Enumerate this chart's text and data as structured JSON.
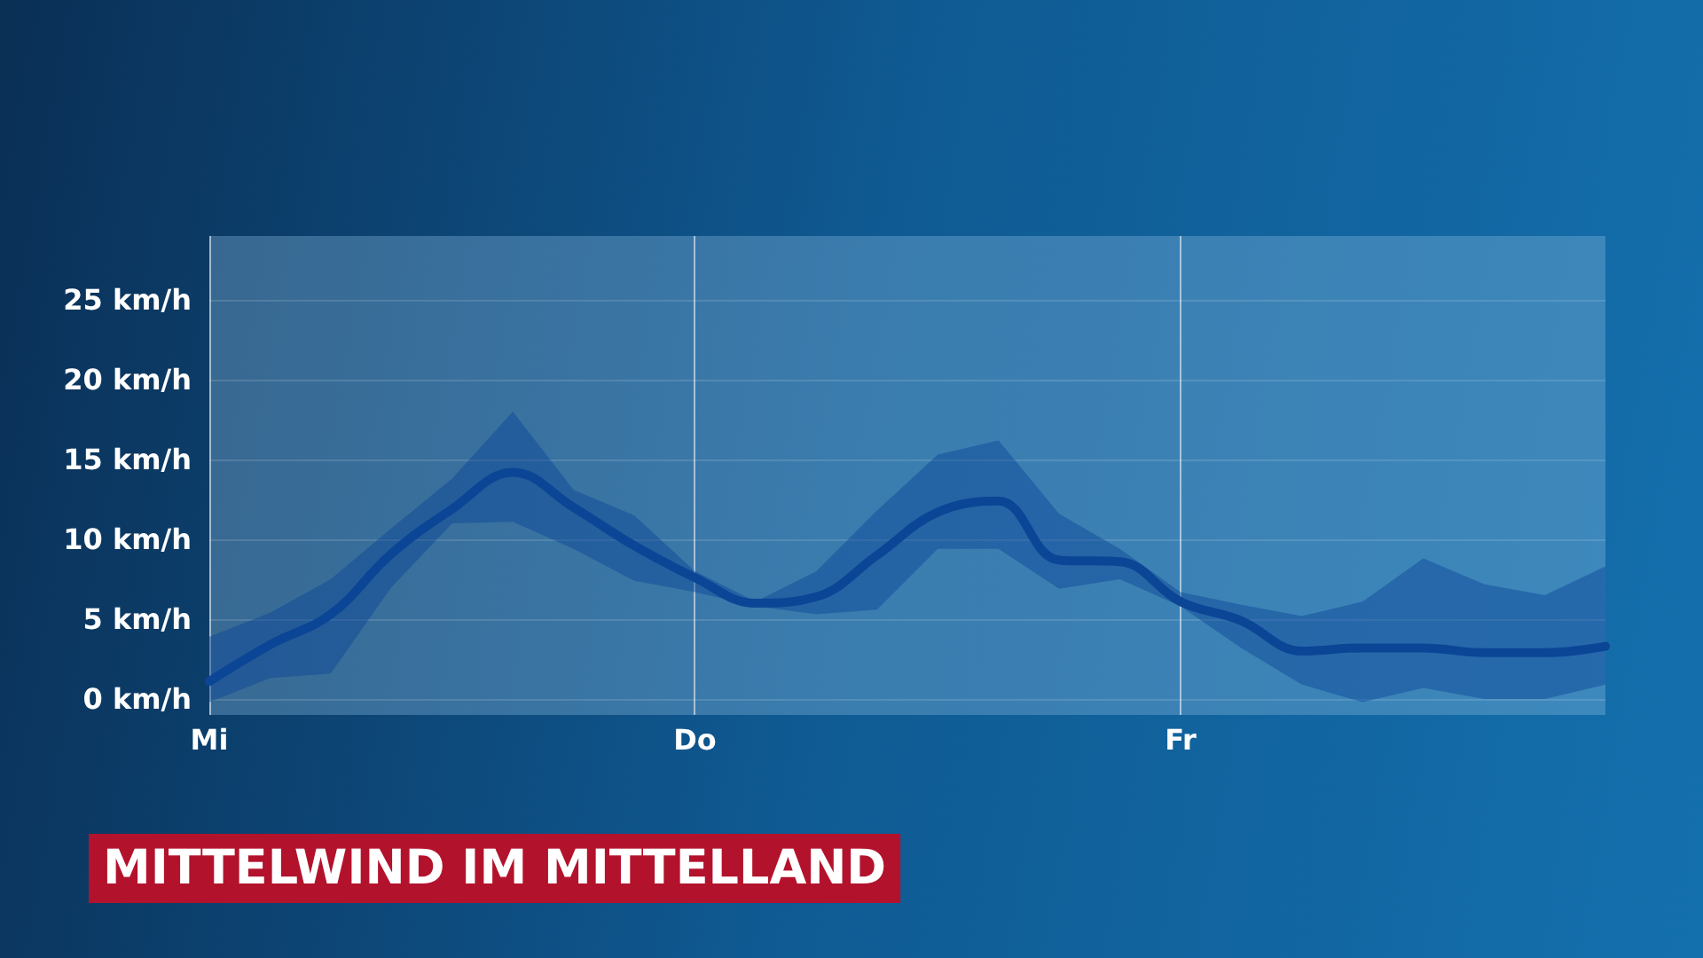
{
  "chart_data": {
    "type": "line",
    "title": "MITTELWIND IM MITTELLAND",
    "categories": [
      "Mi",
      null,
      null,
      null,
      null,
      null,
      null,
      null,
      "Do",
      null,
      null,
      null,
      null,
      null,
      null,
      null,
      "Fr",
      null,
      null,
      null,
      null,
      null,
      null,
      null
    ],
    "ylim": [
      -1,
      29
    ],
    "yticks": [
      {
        "value": 0,
        "label": "0 km/h"
      },
      {
        "value": 5,
        "label": "5 km/h"
      },
      {
        "value": 10,
        "label": "10 km/h"
      },
      {
        "value": 15,
        "label": "15 km/h"
      },
      {
        "value": 20,
        "label": "20 km/h"
      },
      {
        "value": 25,
        "label": "25 km/h"
      }
    ],
    "grid": true,
    "marker": "none",
    "line_style": "solid",
    "series": [
      {
        "color": "#0b4596",
        "values": [
          1.1,
          3.4,
          5.3,
          9.1,
          11.9,
          14.2,
          12.0,
          9.6,
          7.6,
          6.0,
          6.4,
          9.0,
          11.7,
          12.4,
          8.7,
          8.6,
          6.1,
          4.9,
          3.0,
          3.2,
          3.2,
          2.9,
          2.9,
          3.3
        ],
        "upper": [
          3.9,
          5.4,
          7.5,
          10.7,
          13.8,
          18.0,
          13.1,
          11.5,
          8.0,
          6.1,
          8.0,
          11.8,
          15.3,
          16.2,
          11.6,
          9.4,
          6.7,
          5.9,
          5.2,
          6.1,
          8.8,
          7.2,
          6.5,
          8.3
        ],
        "lower": [
          -0.2,
          1.3,
          1.6,
          7.0,
          11.0,
          11.1,
          9.4,
          7.4,
          6.7,
          5.8,
          5.3,
          5.6,
          9.4,
          9.4,
          6.9,
          7.5,
          5.8,
          3.2,
          0.9,
          -0.2,
          0.7,
          0,
          0,
          0.9
        ]
      }
    ]
  }
}
